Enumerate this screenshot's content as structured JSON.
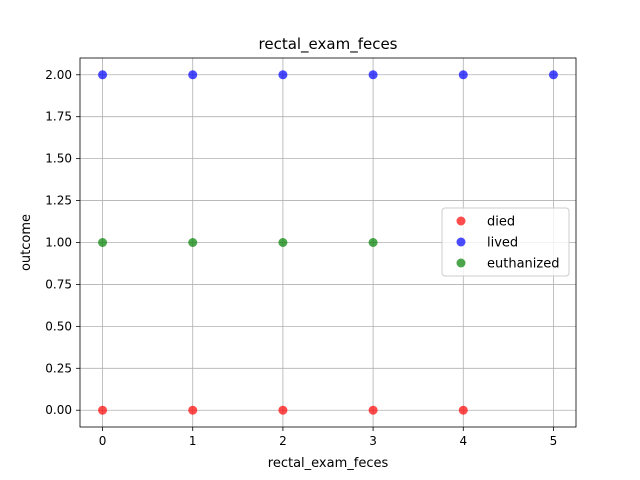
{
  "chart_data": {
    "type": "scatter",
    "title": "rectal_exam_feces",
    "xlabel": "rectal_exam_feces",
    "ylabel": "outcome",
    "xlim": [
      -0.25,
      5.25
    ],
    "ylim": [
      -0.1,
      2.1
    ],
    "xticks": [
      0,
      1,
      2,
      3,
      4,
      5
    ],
    "xtick_labels": [
      "0",
      "1",
      "2",
      "3",
      "4",
      "5"
    ],
    "yticks": [
      0.0,
      0.25,
      0.5,
      0.75,
      1.0,
      1.25,
      1.5,
      1.75,
      2.0
    ],
    "ytick_labels": [
      "0.00",
      "0.25",
      "0.50",
      "0.75",
      "1.00",
      "1.25",
      "1.50",
      "1.75",
      "2.00"
    ],
    "grid": true,
    "legend_position": "center-right",
    "series": [
      {
        "name": "died",
        "color": "#ff0000",
        "x": [
          0,
          1,
          2,
          3,
          4
        ],
        "y": [
          0,
          0,
          0,
          0,
          0
        ]
      },
      {
        "name": "lived",
        "color": "#0000ff",
        "x": [
          0,
          1,
          2,
          3,
          4,
          5
        ],
        "y": [
          2,
          2,
          2,
          2,
          2,
          2
        ]
      },
      {
        "name": "euthanized",
        "color": "#008000",
        "x": [
          0,
          1,
          2,
          3
        ],
        "y": [
          1,
          1,
          1,
          1
        ]
      }
    ]
  }
}
